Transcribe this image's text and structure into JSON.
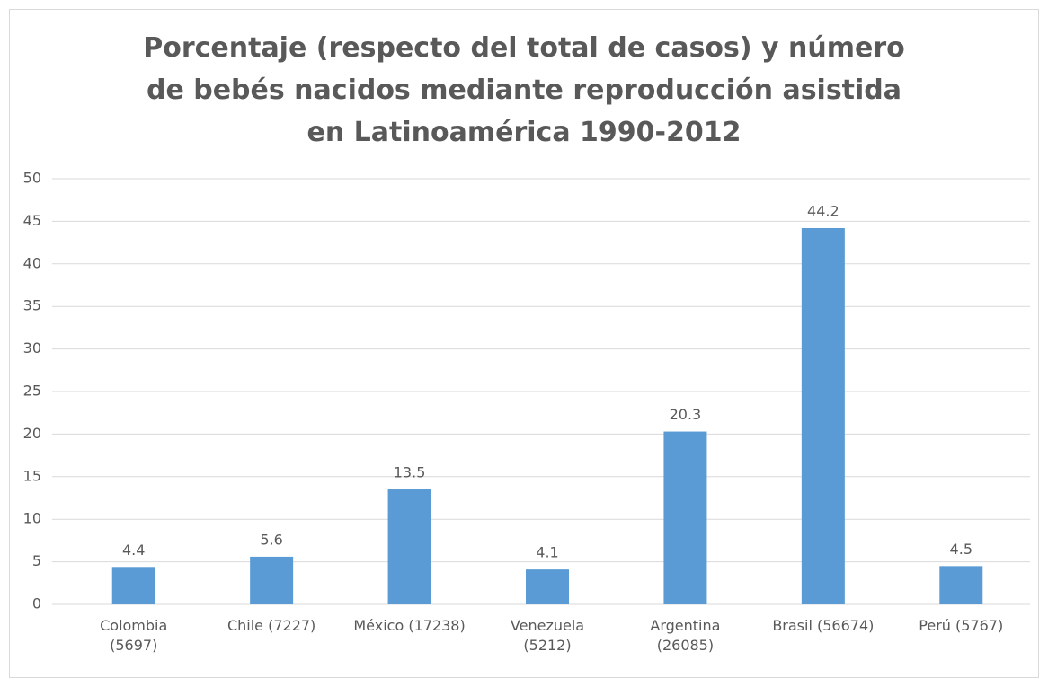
{
  "chart_data": {
    "type": "bar",
    "title": "Porcentaje (respecto del total de casos) y número de bebés nacidos mediante reproducción asistida en Latinoamérica 1990-2012",
    "categories": [
      "Colombia\n(5697)",
      "Chile (7227)",
      "México (17238)",
      "Venezuela\n(5212)",
      "Argentina\n(26085)",
      "Brasil (56674)",
      "Perú (5767)"
    ],
    "values": [
      4.4,
      5.6,
      13.5,
      4.1,
      20.3,
      44.2,
      4.5
    ],
    "color": "#5b9bd5",
    "ylim": [
      0,
      50
    ],
    "yticks": [
      0,
      5,
      10,
      15,
      20,
      25,
      30,
      35,
      40,
      45,
      50
    ],
    "grid": true
  }
}
